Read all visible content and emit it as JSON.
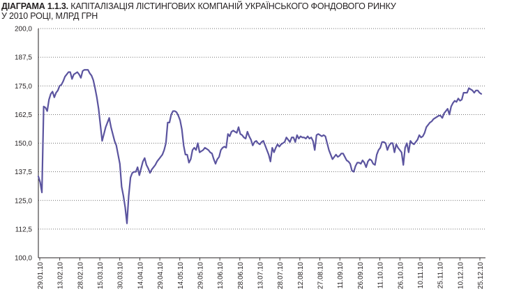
{
  "title": {
    "number": "ДІАГРАМА 1.1.3.",
    "text_line1": "КАПІТАЛІЗАЦІЯ ЛІСТИНГОВИХ КОМПАНІЙ УКРАЇНСЬКОГО ФОНДОВОГО РИНКУ",
    "text_line2": "У 2010 РОЦІ, МЛРД ГРН"
  },
  "chart_data": {
    "type": "line",
    "title": "ДІАГРАМА 1.1.3. КАПІТАЛІЗАЦІЯ ЛІСТИНГОВИХ КОМПАНІЙ УКРАЇНСЬКОГО ФОНДОВОГО РИНКУ У 2010 РОЦІ, МЛРД ГРН",
    "xlabel": "",
    "ylabel": "",
    "ylim": [
      100,
      200
    ],
    "y_ticks": [
      "100,0",
      "112,5",
      "125,0",
      "137,5",
      "150,0",
      "162,5",
      "175,0",
      "187,5",
      "200,0"
    ],
    "grid": "horizontal dotted",
    "x_tick_labels": [
      "29.01.10",
      "13.02.10",
      "28.02.10",
      "15.03.10",
      "30.03.10",
      "14.04.10",
      "29.04.10",
      "14.05.10",
      "29.05.10",
      "13.06.10",
      "28.06.10",
      "13.07.10",
      "28.07.10",
      "12.08.10",
      "27.08.10",
      "11.09.10",
      "26.09.10",
      "11.10.10",
      "26.10.10",
      "10.11.10",
      "25.11.10",
      "10.12.10",
      "25.12.10"
    ],
    "line_color": "#5b549f",
    "series": [
      {
        "values": [
          135.5,
          133,
          128.5,
          166,
          165.5,
          164,
          169,
          171.5,
          172.5,
          170,
          172,
          173,
          175,
          175.5,
          177,
          179,
          180,
          181,
          181,
          178,
          180,
          180.5,
          181,
          180,
          178.5,
          181.5,
          182,
          182,
          182,
          180.5,
          179.5,
          177.5,
          174,
          170,
          165,
          158,
          151,
          154,
          157,
          159,
          161,
          157,
          154,
          151,
          149,
          145,
          141,
          131,
          127,
          122,
          115,
          127,
          135,
          137,
          137.5,
          137.5,
          139.5,
          136,
          139,
          142,
          143.5,
          140.5,
          139,
          137,
          138.5,
          139.5,
          140.5,
          142,
          143,
          144,
          145,
          147,
          150,
          159,
          159,
          162.5,
          164,
          164,
          163.5,
          162,
          160,
          156,
          149,
          145,
          145,
          141.5,
          143,
          147,
          148,
          147,
          150,
          146,
          146.5,
          147,
          148,
          147.5,
          147,
          146,
          145.5,
          143,
          141,
          143,
          144,
          147,
          148,
          148.5,
          148,
          154,
          153,
          155,
          155.5,
          155,
          154.5,
          157,
          154,
          153.5,
          152.5,
          152,
          155,
          153,
          151.5,
          149,
          150.5,
          151,
          150,
          149.5,
          150.5,
          151,
          149,
          147,
          145,
          142,
          148,
          146,
          148,
          149.5,
          148.5,
          149.5,
          150,
          150.5,
          152.5,
          151.5,
          150.5,
          152.5,
          152.5,
          150.5,
          153.5,
          152,
          153,
          152.5,
          152.5,
          152,
          153,
          152,
          152.5,
          151,
          147,
          153.5,
          154,
          153.5,
          153,
          153.5,
          153,
          150,
          147,
          145,
          143,
          144,
          145,
          144,
          144.5,
          145.5,
          145.5,
          144,
          142.5,
          142,
          141,
          138,
          137.5,
          140,
          141.5,
          141.5,
          141,
          142.5,
          141.5,
          139.5,
          142,
          143,
          142.5,
          141,
          140.5,
          145,
          147,
          148,
          150.5,
          150.5,
          150,
          147,
          149,
          150,
          150,
          146,
          149.5,
          148,
          147,
          146,
          140.5,
          148,
          150,
          146,
          151,
          150,
          149.5,
          150.5,
          151.5,
          153.5,
          152.5,
          153,
          154.5,
          157,
          158,
          159,
          159.5,
          160.5,
          161,
          161.5,
          162,
          162,
          161,
          163,
          164,
          165,
          162.5,
          166,
          167.5,
          168.5,
          168,
          169.5,
          168.5,
          169,
          172,
          172,
          172,
          174,
          173.5,
          173,
          172,
          173,
          173,
          172,
          171.5
        ]
      }
    ]
  }
}
